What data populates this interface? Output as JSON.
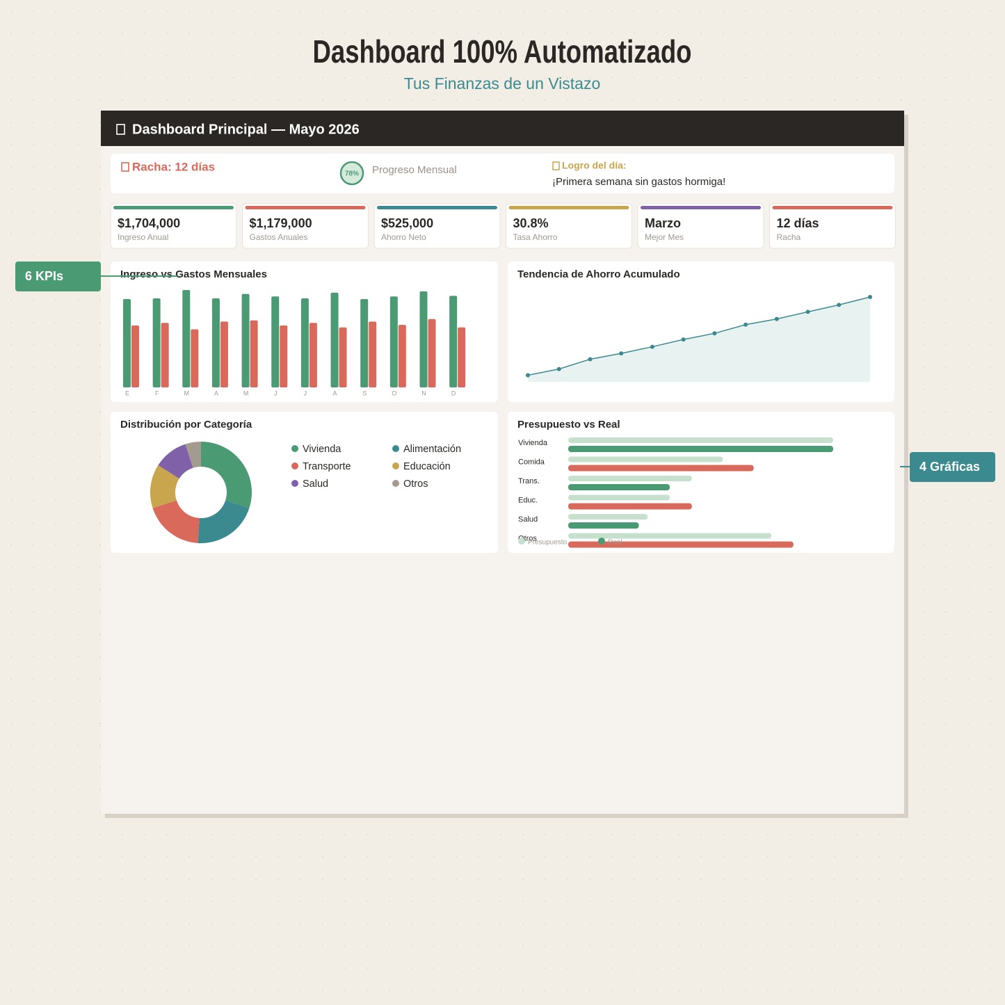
{
  "header": {
    "title": "Dashboard 100% Automatizado",
    "subtitle": "Tus Finanzas de un Vistazo"
  },
  "panel": {
    "title": "Dashboard Principal — Mayo 2026"
  },
  "status": {
    "streak": "Racha: 12 días",
    "progress": "78%",
    "progress_title": "Progreso Mensual",
    "achievement_title": "Logro del día:",
    "achievement": "¡Primera semana sin gastos hormiga!"
  },
  "kpis": [
    {
      "value": "$1,704,000",
      "label": "Ingreso Anual",
      "color": "#4a9a74"
    },
    {
      "value": "$1,179,000",
      "label": "Gastos Anuales",
      "color": "#d9695a"
    },
    {
      "value": "$525,000",
      "label": "Ahorro Neto",
      "color": "#3a8a8f"
    },
    {
      "value": "30.8%",
      "label": "Tasa Ahorro",
      "color": "#c9a54e"
    },
    {
      "value": "Marzo",
      "label": "Mejor Mes",
      "color": "#8060a8"
    },
    {
      "value": "12 días",
      "label": "Racha",
      "color": "#d9695a"
    }
  ],
  "annotations": [
    {
      "text": "6 KPIs",
      "color": "#4a9a74"
    },
    {
      "text": "4 Gráficas",
      "color": "#3a8a8f"
    }
  ],
  "chart_data": [
    {
      "type": "bar",
      "title": "Ingreso vs Gastos Mensuales",
      "categories": [
        "E",
        "F",
        "M",
        "A",
        "M",
        "J",
        "J",
        "A",
        "S",
        "O",
        "N",
        "D"
      ],
      "series": [
        {
          "color": "#4a9a74",
          "values": [
            137000,
            138000,
            151000,
            138000,
            145000,
            141000,
            138000,
            147000,
            137000,
            141000,
            149000,
            142000
          ]
        },
        {
          "color": "#d9695a",
          "values": [
            96000,
            100000,
            90000,
            102000,
            104000,
            96000,
            100000,
            93000,
            102000,
            97000,
            106000,
            93000
          ]
        }
      ]
    },
    {
      "type": "line",
      "title": "Tendencia de Ahorro Acumulado",
      "color": "#3a8a8f",
      "area_color": "#e8f2f1",
      "values": [
        41000,
        79000,
        140000,
        176000,
        217000,
        262000,
        300000,
        354000,
        389000,
        433000,
        476000,
        525000
      ]
    },
    {
      "type": "pie",
      "title": "Distribución por Categoría",
      "donut": true,
      "categories": [
        "Vivienda",
        "Alimentación",
        "Transporte",
        "Educación",
        "Salud",
        "Otros"
      ],
      "values": [
        30,
        21,
        19,
        14,
        11,
        5
      ],
      "colors": [
        "#4a9a74",
        "#3a8a8f",
        "#d9695a",
        "#c9a54e",
        "#8060a8",
        "#a39a90"
      ]
    },
    {
      "type": "barh",
      "title": "Presupuesto vs Real",
      "categories": [
        "Vivienda",
        "Comida",
        "Trans.",
        "Educ.",
        "Salud",
        "Otros"
      ],
      "series": [
        {
          "name": "Presupuesto",
          "color": "#c5e0cc",
          "values": [
            30000,
            17500,
            14000,
            11500,
            9000,
            23000
          ]
        },
        {
          "name": "Real",
          "color": "#4a9a74",
          "over_color": "#d9695a",
          "values": [
            30000,
            21000,
            11500,
            14000,
            8000,
            25500
          ]
        }
      ]
    }
  ]
}
